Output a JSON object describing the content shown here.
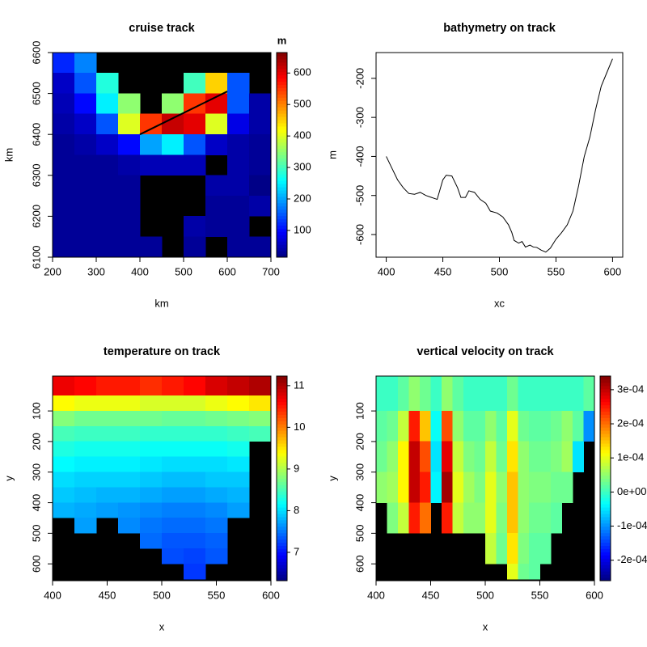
{
  "chart_data": [
    {
      "type": "heatmap",
      "title": "cruise track",
      "xlabel": "km",
      "ylabel": "km",
      "zlabel": "m",
      "colormap": "jet",
      "background": "#000000",
      "xlim": [
        200,
        700
      ],
      "ylim": [
        6100,
        6600
      ],
      "zlim": [
        15,
        665
      ],
      "xticks": [
        200,
        300,
        400,
        500,
        600,
        700
      ],
      "yticks": [
        6100,
        6200,
        6300,
        6400,
        6500,
        6600
      ],
      "zticks": [
        100,
        200,
        300,
        400,
        500,
        600
      ],
      "x": [
        200,
        250,
        300,
        350,
        400,
        450,
        500,
        550,
        600,
        650,
        700
      ],
      "y": [
        6600,
        6550,
        6500,
        6450,
        6400,
        6350,
        6300,
        6250,
        6200,
        6150,
        6100
      ],
      "values": [
        [
          120,
          60,
          50,
          40,
          30,
          30,
          30,
          30,
          30,
          30
        ],
        [
          180,
          150,
          100,
          60,
          40,
          30,
          30,
          30,
          30,
          30
        ],
        [
          null,
          280,
          250,
          150,
          60,
          30,
          30,
          30,
          30,
          30
        ],
        [
          null,
          null,
          350,
          400,
          100,
          40,
          30,
          30,
          30,
          30
        ],
        [
          null,
          null,
          null,
          550,
          200,
          50,
          null,
          null,
          null,
          30
        ],
        [
          null,
          null,
          350,
          620,
          250,
          50,
          null,
          null,
          null,
          null
        ],
        [
          null,
          300,
          550,
          600,
          150,
          50,
          null,
          null,
          40,
          30
        ],
        [
          null,
          450,
          600,
          400,
          60,
          null,
          40,
          30,
          30,
          null
        ],
        [
          null,
          150,
          150,
          80,
          40,
          40,
          40,
          30,
          30,
          30
        ],
        [
          null,
          null,
          40,
          40,
          30,
          30,
          20,
          40,
          null,
          30
        ]
      ],
      "track": {
        "color": "#000000",
        "x": [
          400,
          600
        ],
        "y": [
          6400,
          6505
        ]
      }
    },
    {
      "type": "line",
      "title": "bathymetry on track",
      "xlabel": "xc",
      "ylabel": "m",
      "color": "#000000",
      "xlim": [
        391,
        609
      ],
      "ylim": [
        -658,
        -134
      ],
      "xticks": [
        400,
        450,
        500,
        550,
        600
      ],
      "yticks": [
        -600,
        -500,
        -400,
        -300,
        -200
      ],
      "x": [
        400,
        405,
        410,
        415,
        420,
        425,
        430,
        435,
        440,
        445,
        447,
        450,
        453,
        458,
        463,
        466,
        470,
        473,
        478,
        483,
        488,
        492,
        498,
        503,
        508,
        511,
        513,
        517,
        520,
        523,
        527,
        530,
        533,
        537,
        541,
        545,
        550,
        555,
        560,
        565,
        570,
        575,
        580,
        585,
        590,
        595,
        600
      ],
      "values": [
        -400,
        -430,
        -460,
        -480,
        -495,
        -497,
        -492,
        -500,
        -505,
        -510,
        -490,
        -460,
        -448,
        -450,
        -480,
        -505,
        -505,
        -488,
        -492,
        -510,
        -520,
        -540,
        -545,
        -555,
        -575,
        -595,
        -615,
        -622,
        -618,
        -632,
        -627,
        -632,
        -633,
        -640,
        -645,
        -635,
        -612,
        -595,
        -575,
        -540,
        -475,
        -400,
        -350,
        -280,
        -220,
        -185,
        -150
      ]
    },
    {
      "type": "heatmap",
      "title": "temperature on track",
      "xlabel": "x",
      "ylabel": "y",
      "colormap": "jet",
      "background": "#000000",
      "xlim": [
        400,
        600
      ],
      "ylim": [
        655,
        -14
      ],
      "zlim": [
        6.32,
        11.23
      ],
      "xticks": [
        400,
        450,
        500,
        550,
        600
      ],
      "yticks": [
        100,
        200,
        300,
        400,
        500,
        600
      ],
      "zticks": [
        7,
        8,
        9,
        10,
        11
      ],
      "x": [
        400,
        420,
        440,
        460,
        480,
        500,
        520,
        540,
        560,
        580,
        600
      ],
      "y": [
        -15,
        50,
        100,
        150,
        200,
        250,
        300,
        350,
        400,
        450,
        500,
        550,
        600,
        650
      ],
      "values": [
        [
          10.7,
          9.4,
          8.8,
          8.5,
          8.3,
          8.15,
          8.0,
          7.9,
          7.8,
          null,
          null,
          null,
          null
        ],
        [
          10.6,
          9.3,
          8.7,
          8.45,
          8.25,
          8.1,
          7.95,
          7.85,
          7.75,
          7.7,
          null,
          null,
          null
        ],
        [
          10.5,
          9.3,
          8.7,
          8.45,
          8.25,
          8.1,
          7.95,
          7.8,
          7.7,
          null,
          null,
          null,
          null
        ],
        [
          10.5,
          9.3,
          8.7,
          8.45,
          8.25,
          8.1,
          7.95,
          7.8,
          7.65,
          7.6,
          null,
          null,
          null
        ],
        [
          10.4,
          9.2,
          8.7,
          8.4,
          8.2,
          8.05,
          7.9,
          7.75,
          7.6,
          7.5,
          7.45,
          null,
          null
        ],
        [
          10.5,
          9.2,
          8.65,
          8.4,
          8.2,
          8.0,
          7.85,
          7.7,
          7.55,
          7.45,
          7.35,
          7.3,
          null
        ],
        [
          10.6,
          9.2,
          8.65,
          8.4,
          8.2,
          8.0,
          7.85,
          7.7,
          7.55,
          7.45,
          7.35,
          7.25,
          7.2
        ],
        [
          10.8,
          9.3,
          8.7,
          8.4,
          8.2,
          8.0,
          7.9,
          7.75,
          7.6,
          7.5,
          7.4,
          7.35,
          null
        ],
        [
          10.9,
          9.4,
          8.75,
          8.45,
          8.25,
          8.05,
          7.9,
          7.8,
          7.7,
          null,
          null,
          null,
          null
        ],
        [
          11.0,
          9.5,
          8.8,
          8.5,
          null,
          null,
          null,
          null,
          null,
          null,
          null,
          null,
          null
        ]
      ]
    },
    {
      "type": "heatmap",
      "title": "vertical velocity on track",
      "xlabel": "x",
      "ylabel": "y",
      "colormap": "jet",
      "background": "#000000",
      "xlim": [
        400,
        600
      ],
      "ylim": [
        655,
        -14
      ],
      "zlim": [
        -0.00026,
        0.00034
      ],
      "xticks": [
        400,
        450,
        500,
        550,
        600
      ],
      "yticks": [
        100,
        200,
        300,
        400,
        500,
        600
      ],
      "zticks": [
        {
          "value": -0.0002,
          "label": "-2e-04"
        },
        {
          "value": -0.0001,
          "label": "-1e-04"
        },
        {
          "value": 0,
          "label": "0e+00"
        },
        {
          "value": 0.0001,
          "label": "1e-04"
        },
        {
          "value": 0.0002,
          "label": "2e-04"
        },
        {
          "value": 0.0003,
          "label": "3e-04"
        }
      ],
      "x": [
        400,
        410,
        420,
        430,
        440,
        450,
        460,
        470,
        480,
        490,
        500,
        510,
        520,
        530,
        540,
        550,
        560,
        570,
        580,
        590,
        600
      ],
      "y": [
        -15,
        100,
        200,
        300,
        400,
        500,
        600,
        650
      ],
      "values": [
        [
          0,
          2e-05,
          3e-05,
          5e-05,
          null,
          null,
          null
        ],
        [
          0,
          3e-05,
          5e-05,
          6e-05,
          4e-05,
          null,
          null
        ],
        [
          2e-05,
          8e-05,
          0.00012,
          0.00012,
          8e-05,
          null,
          null
        ],
        [
          5e-05,
          0.00025,
          0.0003,
          0.0003,
          0.00025,
          null,
          null
        ],
        [
          3e-05,
          0.00015,
          0.00022,
          0.00025,
          0.0002,
          null,
          null
        ],
        [
          0,
          -3e-05,
          -5e-05,
          -4e-05,
          null,
          null,
          null
        ],
        [
          5e-05,
          0.00022,
          0.00028,
          0.00032,
          0.00025,
          null,
          null
        ],
        [
          2e-05,
          5e-05,
          8e-05,
          0.0001,
          8e-05,
          null,
          null
        ],
        [
          0,
          2e-05,
          4e-05,
          6e-05,
          5e-05,
          null,
          null
        ],
        [
          0,
          2e-05,
          3e-05,
          4e-05,
          5e-05,
          null,
          null
        ],
        [
          0,
          5e-05,
          8e-05,
          0.0001,
          0.0001,
          8e-05,
          null
        ],
        [
          0,
          2e-05,
          3e-05,
          5e-05,
          4e-05,
          3e-05,
          null
        ],
        [
          3e-05,
          0.0001,
          0.00013,
          0.00015,
          0.00015,
          0.00013,
          0.0001
        ],
        [
          0,
          3e-05,
          5e-05,
          5e-05,
          5e-05,
          4e-05,
          3e-05
        ],
        [
          0,
          2e-05,
          3e-05,
          4e-05,
          3e-05,
          2e-05,
          2e-05
        ],
        [
          0,
          2e-05,
          3e-05,
          4e-05,
          3e-05,
          2e-05,
          null
        ],
        [
          0,
          3e-05,
          4e-05,
          3e-05,
          2e-05,
          null,
          null
        ],
        [
          0,
          5e-05,
          6e-05,
          3e-05,
          null,
          null,
          null
        ],
        [
          0,
          2e-05,
          -5e-05,
          null,
          null,
          null,
          null
        ],
        [
          2e-05,
          -0.0001,
          null,
          null,
          null,
          null,
          null
        ]
      ]
    }
  ]
}
